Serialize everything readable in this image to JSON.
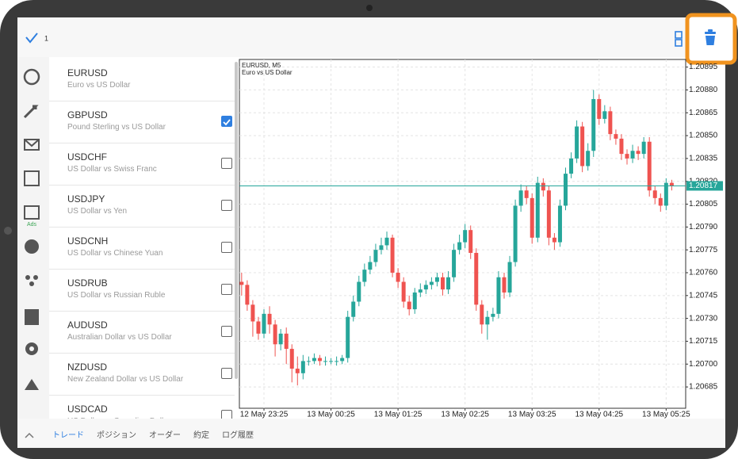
{
  "top_bar": {
    "selected_count": "1"
  },
  "sidebar": {
    "ads_label": "Ads"
  },
  "symbols": [
    {
      "name": "EURUSD",
      "description": "Euro vs US Dollar",
      "checked": null
    },
    {
      "name": "GBPUSD",
      "description": "Pound Sterling vs US Dollar",
      "checked": true
    },
    {
      "name": "USDCHF",
      "description": "US Dollar vs Swiss Franc",
      "checked": false
    },
    {
      "name": "USDJPY",
      "description": "US Dollar vs Yen",
      "checked": false
    },
    {
      "name": "USDCNH",
      "description": "US Dollar vs Chinese Yuan",
      "checked": false
    },
    {
      "name": "USDRUB",
      "description": "US Dollar vs Russian Ruble",
      "checked": false
    },
    {
      "name": "AUDUSD",
      "description": "Australian Dollar vs US Dollar",
      "checked": false
    },
    {
      "name": "NZDUSD",
      "description": "New Zealand Dollar vs US Dollar",
      "checked": false
    },
    {
      "name": "USDCAD",
      "description": "US Dollar vs Canadian Dollar",
      "checked": false
    }
  ],
  "tabs": [
    "トレード",
    "ポジション",
    "オーダー",
    "約定",
    "ログ履歴"
  ],
  "active_tab": 0,
  "chart_data": {
    "type": "candlestick",
    "title": "EURUSD, M5",
    "subtitle": "Euro vs US Dollar",
    "up_color": "#26a69a",
    "down_color": "#ef5350",
    "current_price": 1.20817,
    "current_price_color": "#26a69a",
    "xlim": [
      -0.4,
      79.5
    ],
    "xticks": [
      {
        "value": 4,
        "label": "12 May 23:25"
      },
      {
        "value": 16,
        "label": "13 May 00:25"
      },
      {
        "value": 28,
        "label": "13 May 01:25"
      },
      {
        "value": 40,
        "label": "13 May 02:25"
      },
      {
        "value": 52,
        "label": "13 May 03:25"
      },
      {
        "value": 64,
        "label": "13 May 04:25"
      },
      {
        "value": 76,
        "label": "13 May 05:25"
      }
    ],
    "ylim": [
      1.20671,
      1.209
    ],
    "yticks": [
      1.20685,
      {
        "value": 1.207,
        "label": "1.20700"
      },
      1.20715,
      {
        "value": 1.2073,
        "label": "1.20730"
      },
      1.20745,
      {
        "value": 1.2076,
        "label": "1.20760"
      },
      1.20775,
      {
        "value": 1.2079,
        "label": "1.20790"
      },
      1.20805,
      {
        "value": 1.2082,
        "label": "1.20820"
      },
      1.20835,
      {
        "value": 1.2085,
        "label": "1.20850"
      },
      1.20865,
      {
        "value": 1.2088,
        "label": "1.20880"
      },
      1.20895
    ],
    "grid": true,
    "open": [
      1.20754,
      1.20752,
      1.20739,
      1.20728,
      1.2072,
      1.20733,
      1.20726,
      1.20713,
      1.2072,
      1.2071,
      1.20697,
      1.20694,
      1.20702,
      1.20702,
      1.20704,
      1.20702,
      1.20702,
      1.20702,
      1.20702,
      1.20704,
      1.20731,
      1.20741,
      1.20754,
      1.20762,
      1.20767,
      1.20775,
      1.20778,
      1.20783,
      1.2076,
      1.20754,
      1.20741,
      1.20736,
      1.20747,
      1.20749,
      1.20752,
      1.20754,
      1.20757,
      1.20749,
      1.20757,
      1.20775,
      1.2078,
      1.20788,
      1.20773,
      1.20739,
      1.20726,
      1.20731,
      1.20733,
      1.20757,
      1.20747,
      1.20767,
      1.20804,
      1.20814,
      1.20809,
      1.20783,
      1.20819,
      1.20814,
      1.20783,
      1.2078,
      1.20804,
      1.20825,
      1.20835,
      1.20856,
      1.2083,
      1.2084,
      1.20874,
      1.20861,
      1.20866,
      1.20851,
      1.20848,
      1.20838,
      1.20835,
      1.2084,
      1.20838,
      1.20846,
      1.20814,
      1.20809,
      1.20804,
      1.20819
    ],
    "high": [
      1.2076,
      1.20755,
      1.20742,
      1.20731,
      1.20736,
      1.20738,
      1.20729,
      1.20723,
      1.20724,
      1.20713,
      1.20705,
      1.20706,
      1.20705,
      1.20707,
      1.20706,
      1.20705,
      1.20704,
      1.20705,
      1.20706,
      1.20735,
      1.20745,
      1.20758,
      1.20766,
      1.20771,
      1.20779,
      1.20783,
      1.20787,
      1.20785,
      1.20763,
      1.20757,
      1.20745,
      1.2075,
      1.20753,
      1.20755,
      1.20757,
      1.2076,
      1.2076,
      1.20761,
      1.20779,
      1.20785,
      1.20792,
      1.20791,
      1.20776,
      1.20742,
      1.20735,
      1.20737,
      1.20761,
      1.2076,
      1.20771,
      1.20808,
      1.20818,
      1.20817,
      1.20812,
      1.20823,
      1.20822,
      1.20817,
      1.20786,
      1.20808,
      1.20829,
      1.20839,
      1.2086,
      1.20859,
      1.20845,
      1.2088,
      1.20877,
      1.2087,
      1.20869,
      1.20854,
      1.20851,
      1.20841,
      1.20844,
      1.20843,
      1.20849,
      1.20849,
      1.20817,
      1.20812,
      1.20822,
      1.20821
    ],
    "low": [
      1.20745,
      1.20735,
      1.20718,
      1.20716,
      1.20717,
      1.2072,
      1.20705,
      1.20709,
      1.207,
      1.20688,
      1.20686,
      1.2069,
      1.20699,
      1.207,
      1.20699,
      1.20699,
      1.207,
      1.20699,
      1.207,
      1.20701,
      1.20728,
      1.20738,
      1.20751,
      1.20759,
      1.20764,
      1.20772,
      1.20775,
      1.20757,
      1.2075,
      1.20737,
      1.20732,
      1.20733,
      1.20744,
      1.20746,
      1.20749,
      1.20751,
      1.20745,
      1.20746,
      1.20754,
      1.20772,
      1.20776,
      1.20769,
      1.20735,
      1.2072,
      1.20716,
      1.20728,
      1.2073,
      1.20743,
      1.20744,
      1.20764,
      1.208,
      1.20805,
      1.20779,
      1.2078,
      1.2081,
      1.20778,
      1.20775,
      1.20777,
      1.20801,
      1.20822,
      1.20832,
      1.20826,
      1.20827,
      1.20836,
      1.20857,
      1.20858,
      1.20847,
      1.20844,
      1.20834,
      1.20831,
      1.20832,
      1.20834,
      1.20835,
      1.2081,
      1.20805,
      1.208,
      1.20801,
      1.20814
    ],
    "close": [
      1.20752,
      1.20739,
      1.20728,
      1.2072,
      1.20733,
      1.20726,
      1.20713,
      1.2072,
      1.2071,
      1.20697,
      1.20694,
      1.20702,
      1.20702,
      1.20704,
      1.20702,
      1.20702,
      1.20702,
      1.20702,
      1.20704,
      1.20731,
      1.20741,
      1.20754,
      1.20762,
      1.20767,
      1.20775,
      1.20778,
      1.20783,
      1.2076,
      1.20754,
      1.20741,
      1.20736,
      1.20747,
      1.20749,
      1.20752,
      1.20754,
      1.20757,
      1.20749,
      1.20757,
      1.20775,
      1.2078,
      1.20788,
      1.20773,
      1.20739,
      1.20726,
      1.20731,
      1.20733,
      1.20757,
      1.20747,
      1.20767,
      1.20804,
      1.20814,
      1.20809,
      1.20783,
      1.20819,
      1.20814,
      1.20783,
      1.2078,
      1.20804,
      1.20825,
      1.20835,
      1.20856,
      1.2083,
      1.2084,
      1.20874,
      1.20861,
      1.20866,
      1.20851,
      1.20848,
      1.20838,
      1.20835,
      1.2084,
      1.20838,
      1.20846,
      1.20814,
      1.20809,
      1.20804,
      1.20819,
      1.20817
    ]
  }
}
